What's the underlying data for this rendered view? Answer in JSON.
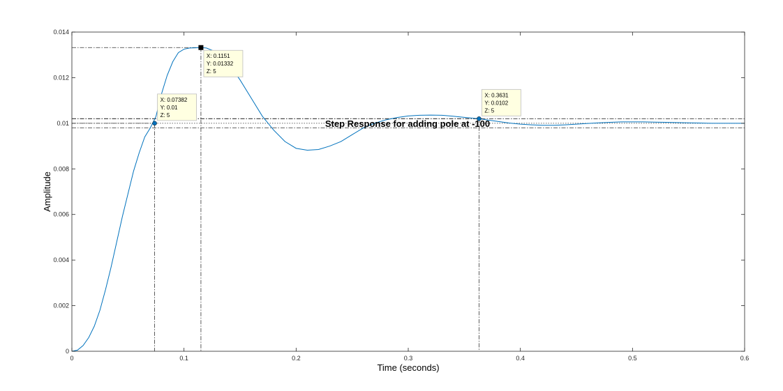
{
  "chart_data": {
    "type": "line",
    "title": "Step Response for adding pole at -100",
    "xlabel": "Time (seconds)",
    "ylabel": "Amplitude",
    "xlim": [
      0,
      0.6
    ],
    "ylim": [
      0,
      0.014
    ],
    "grid": false,
    "xticks": [
      "0",
      "0.1",
      "0.2",
      "0.3",
      "0.4",
      "0.5",
      "0.6"
    ],
    "xtick_values": [
      0,
      0.1,
      0.2,
      0.3,
      0.4,
      0.5,
      0.6
    ],
    "yticks": [
      "0",
      "0.002",
      "0.004",
      "0.006",
      "0.008",
      "0.01",
      "0.012",
      "0.014"
    ],
    "ytick_values": [
      0,
      0.002,
      0.004,
      0.006,
      0.008,
      0.01,
      0.012,
      0.014
    ],
    "series": [
      {
        "color": "#0072BD",
        "x": [
          0,
          0.005,
          0.01,
          0.015,
          0.02,
          0.025,
          0.03,
          0.035,
          0.04,
          0.045,
          0.05,
          0.055,
          0.06,
          0.065,
          0.07,
          0.075,
          0.08,
          0.085,
          0.09,
          0.095,
          0.1,
          0.105,
          0.11,
          0.1151,
          0.12,
          0.13,
          0.14,
          0.15,
          0.16,
          0.17,
          0.18,
          0.19,
          0.2,
          0.21,
          0.22,
          0.23,
          0.24,
          0.25,
          0.26,
          0.27,
          0.28,
          0.29,
          0.3,
          0.31,
          0.32,
          0.33,
          0.34,
          0.35,
          0.3631,
          0.37,
          0.38,
          0.39,
          0.4,
          0.41,
          0.42,
          0.43,
          0.44,
          0.45,
          0.46,
          0.47,
          0.48,
          0.49,
          0.5,
          0.51,
          0.52,
          0.53,
          0.54,
          0.55,
          0.56,
          0.57,
          0.58,
          0.59,
          0.6
        ],
        "y": [
          0,
          5e-05,
          0.00025,
          0.0006,
          0.0011,
          0.0018,
          0.0027,
          0.0037,
          0.0048,
          0.0059,
          0.0069,
          0.0079,
          0.0087,
          0.0094,
          0.0098,
          0.0103,
          0.0113,
          0.0121,
          0.0127,
          0.0131,
          0.01325,
          0.0133,
          0.01331,
          0.01332,
          0.0133,
          0.0131,
          0.0126,
          0.0119,
          0.0111,
          0.0103,
          0.0097,
          0.0092,
          0.0089,
          0.00882,
          0.00885,
          0.009,
          0.0092,
          0.0095,
          0.0098,
          0.01,
          0.01015,
          0.01025,
          0.01032,
          0.01035,
          0.01036,
          0.01035,
          0.01031,
          0.01026,
          0.0102,
          0.01015,
          0.01008,
          0.01001,
          0.00996,
          0.00993,
          0.00991,
          0.00991,
          0.00993,
          0.00996,
          0.00999,
          0.01002,
          0.01004,
          0.01006,
          0.01006,
          0.01006,
          0.01005,
          0.01004,
          0.01003,
          0.01002,
          0.01001,
          0.01,
          0.01,
          0.01,
          0.01
        ]
      }
    ],
    "reference_lines_y": [
      0.0102,
      0.01,
      0.0098
    ],
    "datatips": [
      {
        "x": 0.07382,
        "y": 0.01,
        "lines": [
          "X: 0.07382",
          "Y: 0.01",
          "Z: 5"
        ],
        "marker": "circle"
      },
      {
        "x": 0.1151,
        "y": 0.01332,
        "lines": [
          "X: 0.1151",
          "Y: 0.01332",
          "Z: 5"
        ],
        "marker": "square"
      },
      {
        "x": 0.3631,
        "y": 0.0102,
        "lines": [
          "X: 0.3631",
          "Y: 0.0102",
          "Z: 5"
        ],
        "marker": "circle"
      }
    ]
  }
}
